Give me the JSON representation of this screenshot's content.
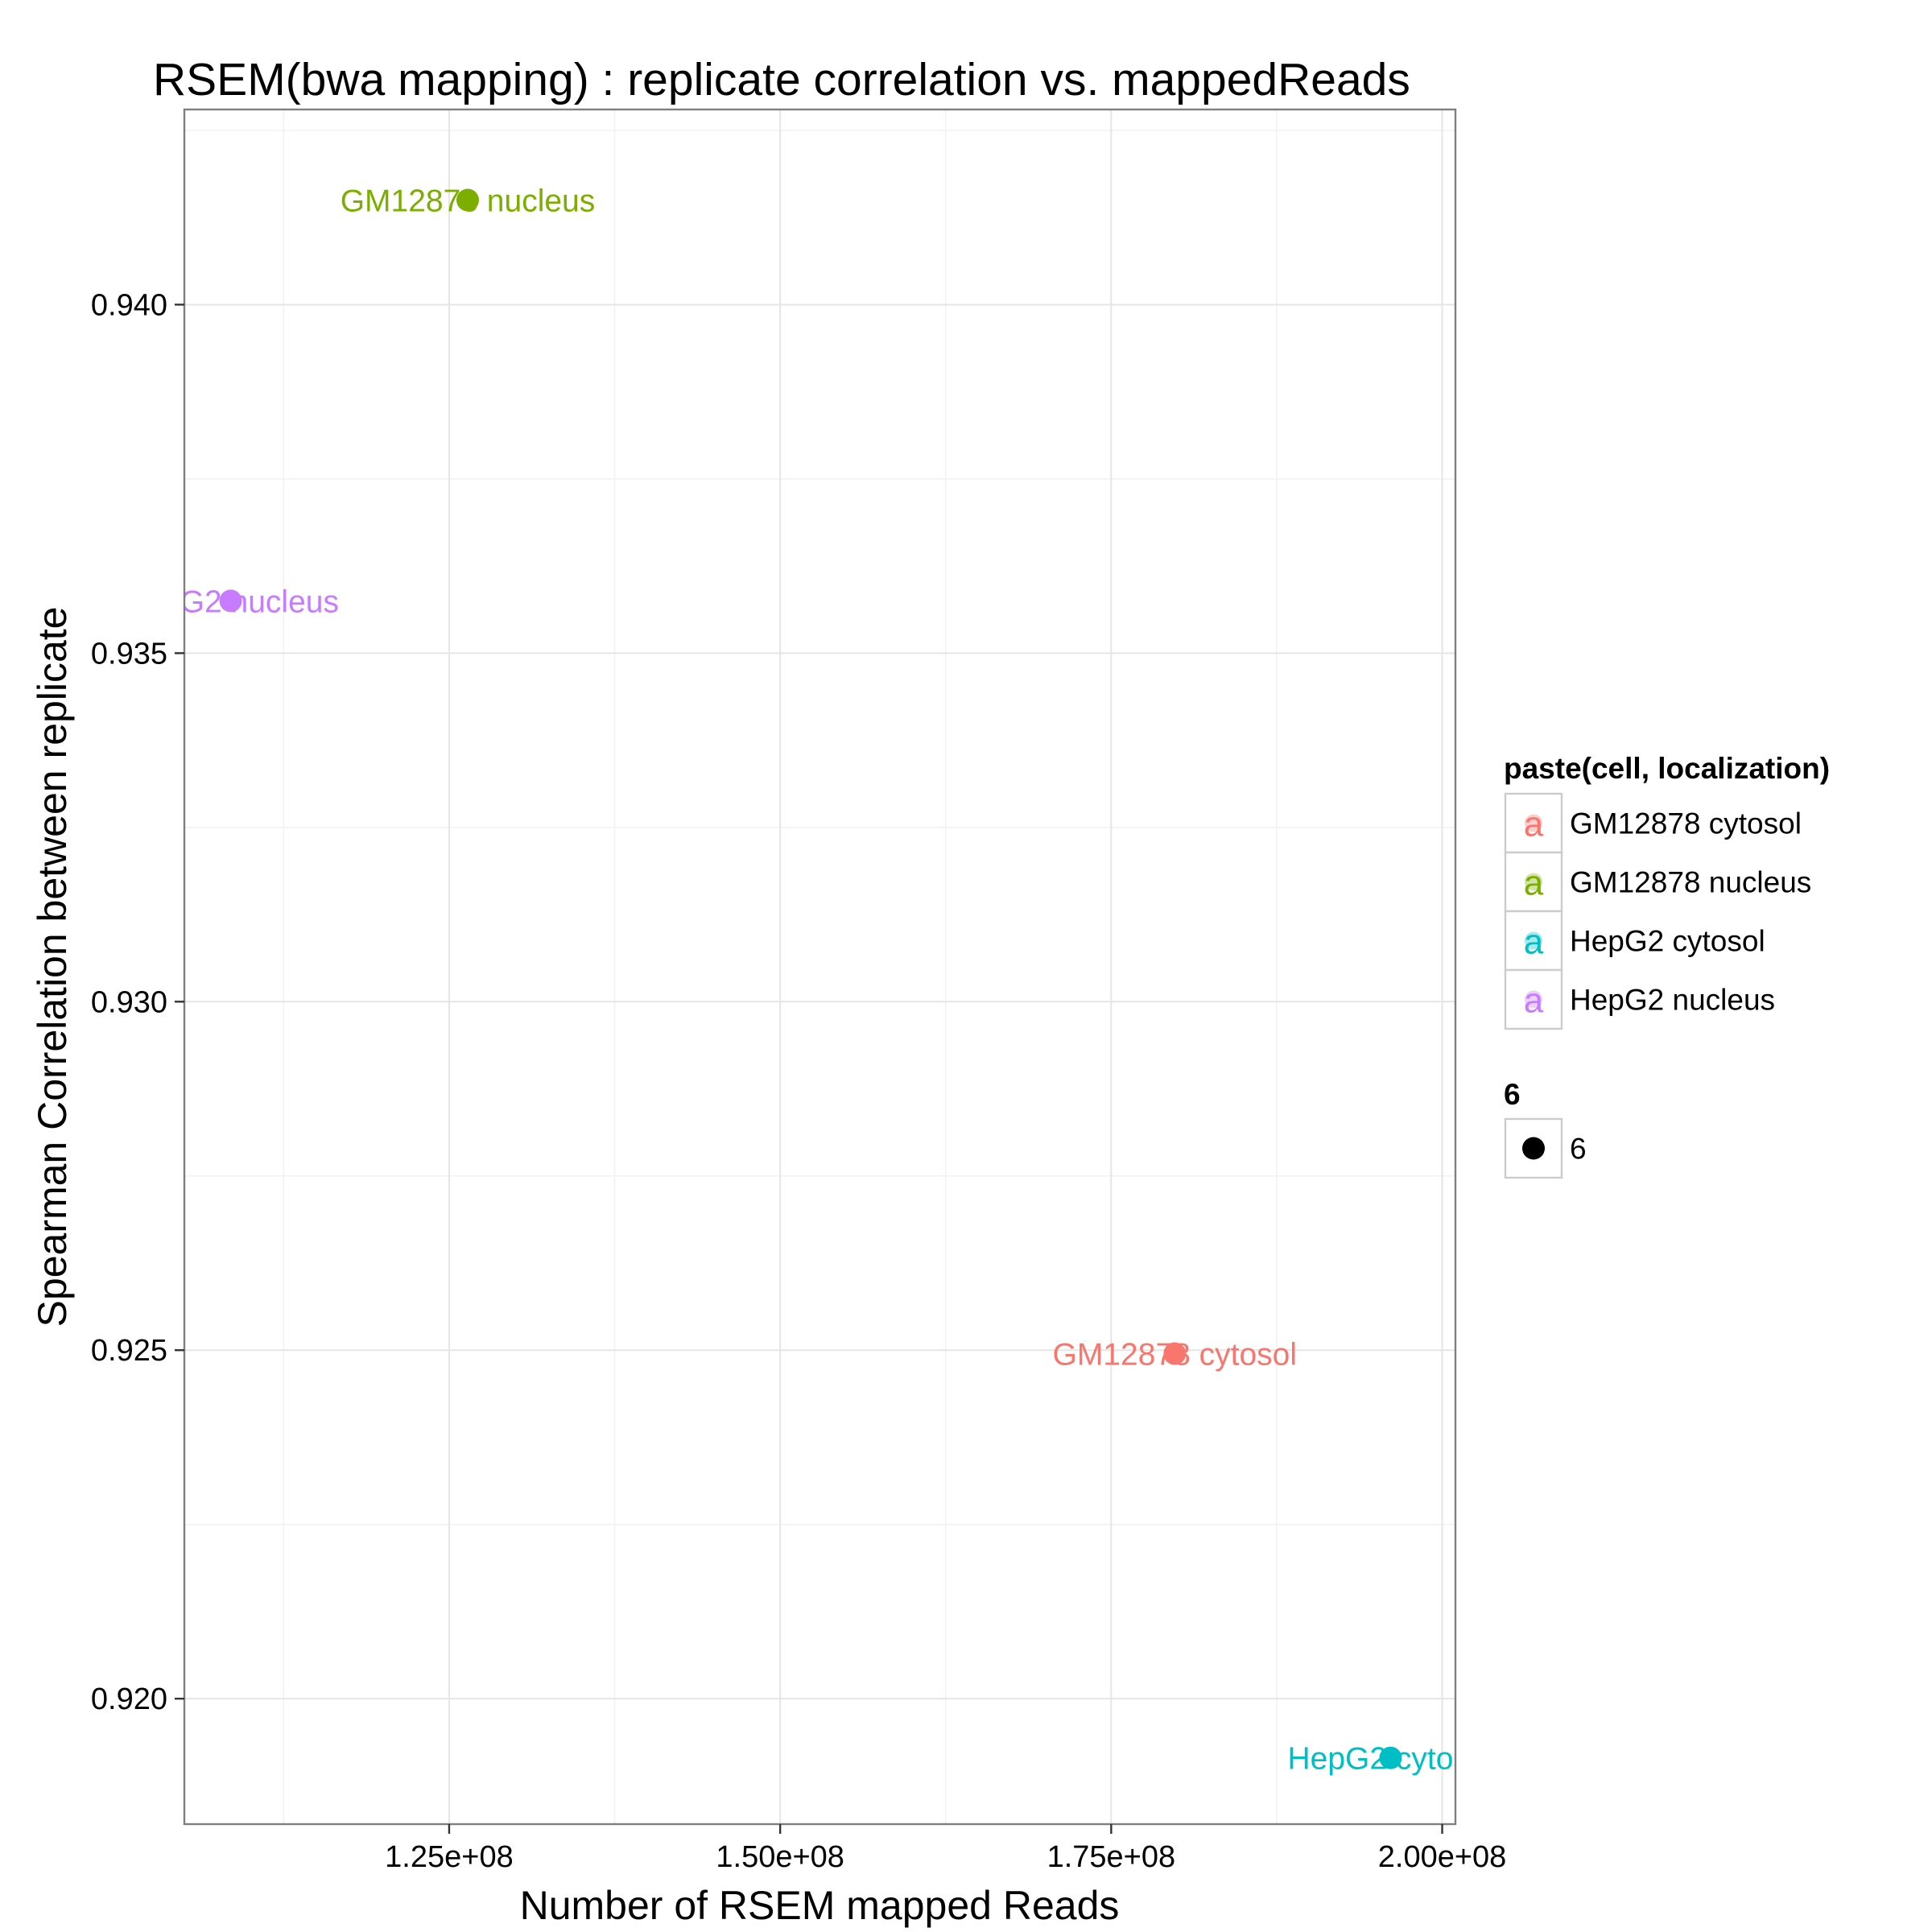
{
  "chart_data": {
    "type": "scatter",
    "title": "RSEM(bwa mapping) : replicate correlation vs. mappedReads",
    "xlabel": "Number of RSEM mapped Reads",
    "ylabel": "Spearman Correlation between replicate",
    "xlim": [
      105000000,
      201000000
    ],
    "ylim": [
      0.9182,
      0.9428
    ],
    "x_ticks": [
      125000000,
      150000000,
      175000000,
      200000000
    ],
    "x_tick_labels": [
      "1.25e+08",
      "1.50e+08",
      "1.75e+08",
      "2.00e+08"
    ],
    "y_ticks": [
      0.92,
      0.925,
      0.93,
      0.935,
      0.94
    ],
    "y_tick_labels": [
      "0.920",
      "0.925",
      "0.930",
      "0.935",
      "0.940"
    ],
    "grid": true,
    "points": [
      {
        "x": 179800000,
        "y": 0.92495,
        "label": "GM12878 cytosol",
        "color": "#F8766D"
      },
      {
        "x": 126400000,
        "y": 0.9415,
        "label": "GM12878 nucleus",
        "color": "#7CAE00"
      },
      {
        "x": 196100000,
        "y": 0.91915,
        "label": "HepG2 cytosol",
        "color": "#00BFC4"
      },
      {
        "x": 108500000,
        "y": 0.93575,
        "label": "HepG2 nucleus",
        "color": "#C77CFF"
      }
    ],
    "legend": {
      "placement": "right",
      "color_title": "paste(cell, localization)",
      "color_entries": [
        {
          "label": "GM12878 cytosol",
          "color": "#F8766D",
          "glyph": "a"
        },
        {
          "label": "GM12878 nucleus",
          "color": "#7CAE00",
          "glyph": "a"
        },
        {
          "label": "HepG2 cytosol",
          "color": "#00BFC4",
          "glyph": "a"
        },
        {
          "label": "HepG2 nucleus",
          "color": "#C77CFF",
          "glyph": "a"
        }
      ],
      "size_title": "6",
      "size_entries": [
        {
          "label": "6",
          "color": "#000000"
        }
      ]
    }
  }
}
